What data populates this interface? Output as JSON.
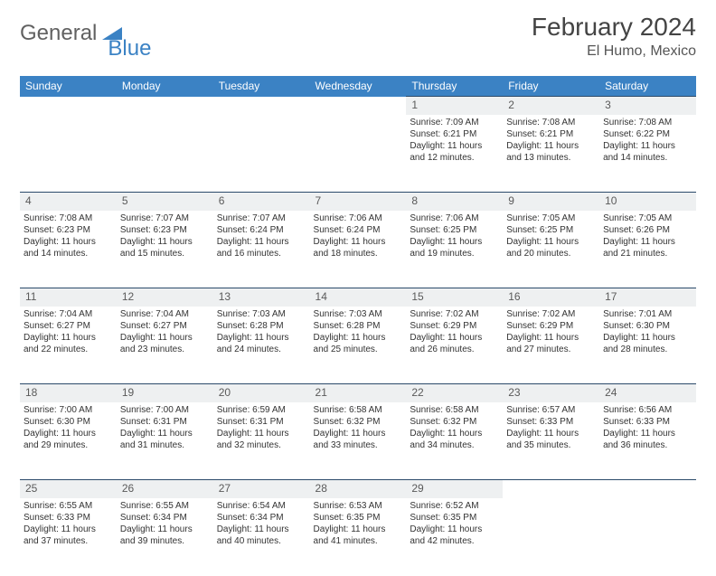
{
  "brand": {
    "part1": "General",
    "part2": "Blue"
  },
  "title": "February 2024",
  "location": "El Humo, Mexico",
  "colors": {
    "header_bg": "#3B82C4",
    "daynum_bg": "#eef0f1",
    "border": "#2b4a6a",
    "text": "#333333",
    "brand_gray": "#616161",
    "brand_blue": "#3B82C4"
  },
  "weekdays": [
    "Sunday",
    "Monday",
    "Tuesday",
    "Wednesday",
    "Thursday",
    "Friday",
    "Saturday"
  ],
  "weeks": [
    {
      "nums": [
        "",
        "",
        "",
        "",
        "1",
        "2",
        "3"
      ],
      "cells": [
        null,
        null,
        null,
        null,
        {
          "sunrise": "7:09 AM",
          "sunset": "6:21 PM",
          "dl1": "Daylight: 11 hours",
          "dl2": "and 12 minutes."
        },
        {
          "sunrise": "7:08 AM",
          "sunset": "6:21 PM",
          "dl1": "Daylight: 11 hours",
          "dl2": "and 13 minutes."
        },
        {
          "sunrise": "7:08 AM",
          "sunset": "6:22 PM",
          "dl1": "Daylight: 11 hours",
          "dl2": "and 14 minutes."
        }
      ]
    },
    {
      "nums": [
        "4",
        "5",
        "6",
        "7",
        "8",
        "9",
        "10"
      ],
      "cells": [
        {
          "sunrise": "7:08 AM",
          "sunset": "6:23 PM",
          "dl1": "Daylight: 11 hours",
          "dl2": "and 14 minutes."
        },
        {
          "sunrise": "7:07 AM",
          "sunset": "6:23 PM",
          "dl1": "Daylight: 11 hours",
          "dl2": "and 15 minutes."
        },
        {
          "sunrise": "7:07 AM",
          "sunset": "6:24 PM",
          "dl1": "Daylight: 11 hours",
          "dl2": "and 16 minutes."
        },
        {
          "sunrise": "7:06 AM",
          "sunset": "6:24 PM",
          "dl1": "Daylight: 11 hours",
          "dl2": "and 18 minutes."
        },
        {
          "sunrise": "7:06 AM",
          "sunset": "6:25 PM",
          "dl1": "Daylight: 11 hours",
          "dl2": "and 19 minutes."
        },
        {
          "sunrise": "7:05 AM",
          "sunset": "6:25 PM",
          "dl1": "Daylight: 11 hours",
          "dl2": "and 20 minutes."
        },
        {
          "sunrise": "7:05 AM",
          "sunset": "6:26 PM",
          "dl1": "Daylight: 11 hours",
          "dl2": "and 21 minutes."
        }
      ]
    },
    {
      "nums": [
        "11",
        "12",
        "13",
        "14",
        "15",
        "16",
        "17"
      ],
      "cells": [
        {
          "sunrise": "7:04 AM",
          "sunset": "6:27 PM",
          "dl1": "Daylight: 11 hours",
          "dl2": "and 22 minutes."
        },
        {
          "sunrise": "7:04 AM",
          "sunset": "6:27 PM",
          "dl1": "Daylight: 11 hours",
          "dl2": "and 23 minutes."
        },
        {
          "sunrise": "7:03 AM",
          "sunset": "6:28 PM",
          "dl1": "Daylight: 11 hours",
          "dl2": "and 24 minutes."
        },
        {
          "sunrise": "7:03 AM",
          "sunset": "6:28 PM",
          "dl1": "Daylight: 11 hours",
          "dl2": "and 25 minutes."
        },
        {
          "sunrise": "7:02 AM",
          "sunset": "6:29 PM",
          "dl1": "Daylight: 11 hours",
          "dl2": "and 26 minutes."
        },
        {
          "sunrise": "7:02 AM",
          "sunset": "6:29 PM",
          "dl1": "Daylight: 11 hours",
          "dl2": "and 27 minutes."
        },
        {
          "sunrise": "7:01 AM",
          "sunset": "6:30 PM",
          "dl1": "Daylight: 11 hours",
          "dl2": "and 28 minutes."
        }
      ]
    },
    {
      "nums": [
        "18",
        "19",
        "20",
        "21",
        "22",
        "23",
        "24"
      ],
      "cells": [
        {
          "sunrise": "7:00 AM",
          "sunset": "6:30 PM",
          "dl1": "Daylight: 11 hours",
          "dl2": "and 29 minutes."
        },
        {
          "sunrise": "7:00 AM",
          "sunset": "6:31 PM",
          "dl1": "Daylight: 11 hours",
          "dl2": "and 31 minutes."
        },
        {
          "sunrise": "6:59 AM",
          "sunset": "6:31 PM",
          "dl1": "Daylight: 11 hours",
          "dl2": "and 32 minutes."
        },
        {
          "sunrise": "6:58 AM",
          "sunset": "6:32 PM",
          "dl1": "Daylight: 11 hours",
          "dl2": "and 33 minutes."
        },
        {
          "sunrise": "6:58 AM",
          "sunset": "6:32 PM",
          "dl1": "Daylight: 11 hours",
          "dl2": "and 34 minutes."
        },
        {
          "sunrise": "6:57 AM",
          "sunset": "6:33 PM",
          "dl1": "Daylight: 11 hours",
          "dl2": "and 35 minutes."
        },
        {
          "sunrise": "6:56 AM",
          "sunset": "6:33 PM",
          "dl1": "Daylight: 11 hours",
          "dl2": "and 36 minutes."
        }
      ]
    },
    {
      "nums": [
        "25",
        "26",
        "27",
        "28",
        "29",
        "",
        ""
      ],
      "cells": [
        {
          "sunrise": "6:55 AM",
          "sunset": "6:33 PM",
          "dl1": "Daylight: 11 hours",
          "dl2": "and 37 minutes."
        },
        {
          "sunrise": "6:55 AM",
          "sunset": "6:34 PM",
          "dl1": "Daylight: 11 hours",
          "dl2": "and 39 minutes."
        },
        {
          "sunrise": "6:54 AM",
          "sunset": "6:34 PM",
          "dl1": "Daylight: 11 hours",
          "dl2": "and 40 minutes."
        },
        {
          "sunrise": "6:53 AM",
          "sunset": "6:35 PM",
          "dl1": "Daylight: 11 hours",
          "dl2": "and 41 minutes."
        },
        {
          "sunrise": "6:52 AM",
          "sunset": "6:35 PM",
          "dl1": "Daylight: 11 hours",
          "dl2": "and 42 minutes."
        },
        null,
        null
      ]
    }
  ],
  "labels": {
    "sunrise": "Sunrise: ",
    "sunset": "Sunset: "
  }
}
